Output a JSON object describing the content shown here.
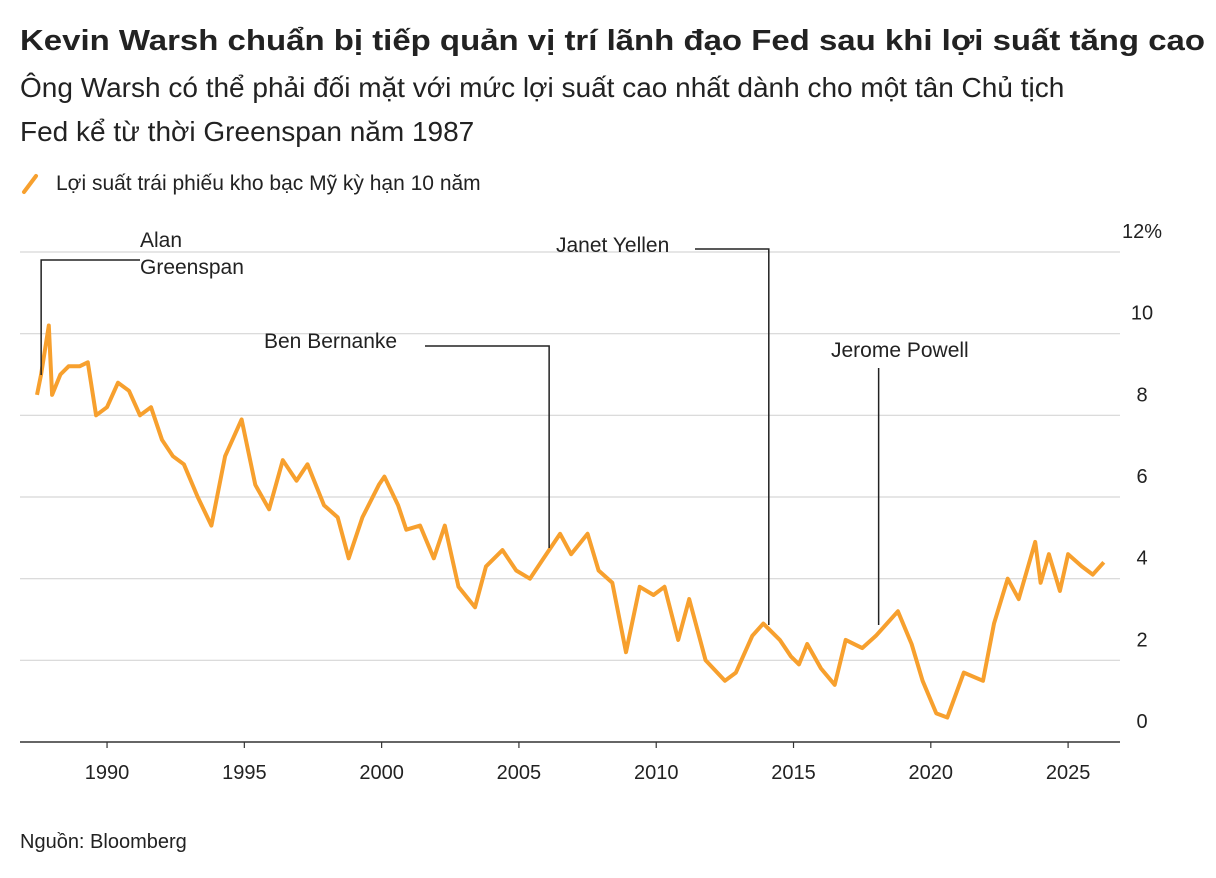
{
  "chart_data": {
    "type": "line",
    "title": "Kevin Warsh chuẩn bị tiếp quản vị trí lãnh đạo Fed sau khi lợi suất tăng cao",
    "subtitle": [
      "Ông Warsh có thể phải đối mặt với mức lợi suất cao nhất dành cho một tân Chủ tịch",
      "Fed kể từ thời Greenspan năm 1987"
    ],
    "source": "Nguồn: Bloomberg",
    "x": [
      1987.45,
      1987.6,
      1987.88,
      1988.0,
      1988.3,
      1988.6,
      1989.0,
      1989.3,
      1989.6,
      1990.0,
      1990.4,
      1990.8,
      1991.2,
      1991.6,
      1992.0,
      1992.4,
      1992.8,
      1993.3,
      1993.8,
      1994.3,
      1994.9,
      1995.4,
      1995.9,
      1996.4,
      1996.9,
      1997.3,
      1997.9,
      1998.4,
      1998.8,
      1999.3,
      1999.9,
      2000.1,
      2000.6,
      2000.9,
      2001.4,
      2001.9,
      2002.3,
      2002.8,
      2003.4,
      2003.8,
      2004.4,
      2004.9,
      2005.4,
      2005.9,
      2006.5,
      2006.9,
      2007.5,
      2007.9,
      2008.4,
      2008.9,
      2009.4,
      2009.9,
      2010.3,
      2010.8,
      2011.2,
      2011.8,
      2012.5,
      2012.9,
      2013.5,
      2013.9,
      2014.5,
      2014.9,
      2015.2,
      2015.5,
      2016.0,
      2016.5,
      2016.9,
      2017.5,
      2018.0,
      2018.8,
      2019.3,
      2019.7,
      2020.2,
      2020.6,
      2021.2,
      2021.9,
      2022.3,
      2022.8,
      2023.2,
      2023.8,
      2024.0,
      2024.3,
      2024.7,
      2025.0,
      2025.5,
      2025.9,
      2026.3
    ],
    "series": [
      {
        "name": "Lợi suất trái phiếu kho bạc Mỹ kỳ hạn 10 năm",
        "color": "#f7a02e",
        "values": [
          8.5,
          9.0,
          10.2,
          8.5,
          9.0,
          9.2,
          9.2,
          9.3,
          8.0,
          8.2,
          8.8,
          8.6,
          8.0,
          8.2,
          7.4,
          7.0,
          6.8,
          6.0,
          5.3,
          7.0,
          7.9,
          6.3,
          5.7,
          6.9,
          6.4,
          6.8,
          5.8,
          5.5,
          4.5,
          5.5,
          6.3,
          6.5,
          5.8,
          5.2,
          5.3,
          4.5,
          5.3,
          3.8,
          3.3,
          4.3,
          4.7,
          4.2,
          4.0,
          4.5,
          5.1,
          4.6,
          5.1,
          4.2,
          3.9,
          2.2,
          3.8,
          3.6,
          3.8,
          2.5,
          3.5,
          2.0,
          1.5,
          1.7,
          2.6,
          2.9,
          2.5,
          2.1,
          1.9,
          2.4,
          1.8,
          1.4,
          2.5,
          2.3,
          2.6,
          3.2,
          2.4,
          1.5,
          0.7,
          0.6,
          1.7,
          1.5,
          2.9,
          4.0,
          3.5,
          4.9,
          3.9,
          4.6,
          3.7,
          4.6,
          4.3,
          4.1,
          4.4
        ]
      }
    ],
    "xlim": [
      1986.83,
      2026.89
    ],
    "xticks": [
      1990,
      1995,
      2000,
      2005,
      2010,
      2015,
      2020,
      2025
    ],
    "ylim": [
      0,
      12
    ],
    "yticks": [
      0,
      2,
      4,
      6,
      8,
      10,
      {
        "value": 12,
        "label": "12%"
      }
    ],
    "grid": true,
    "annotations": [
      {
        "lines": [
          "Alan",
          "Greenspan"
        ],
        "x": 1987.6
      },
      {
        "lines": [
          "Ben Bernanke"
        ],
        "x": 2006.1
      },
      {
        "lines": [
          "Janet Yellen"
        ],
        "x": 2014.1
      },
      {
        "lines": [
          "Jerome Powell"
        ],
        "x": 2018.1
      }
    ]
  }
}
